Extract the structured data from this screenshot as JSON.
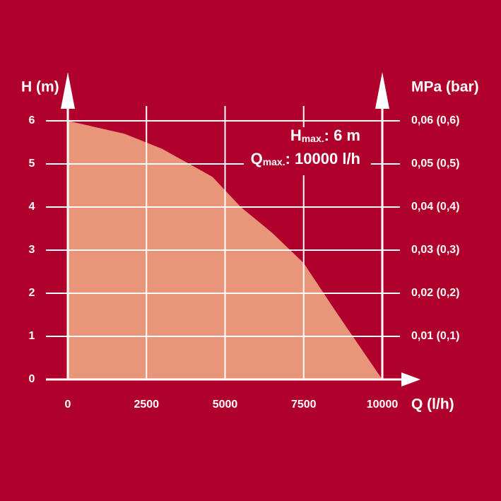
{
  "chart_data": {
    "type": "area",
    "x": [
      0,
      1800,
      3000,
      4600,
      5500,
      6500,
      7500,
      8500,
      10000
    ],
    "values": [
      6,
      5.7,
      5.35,
      4.7,
      4.0,
      3.4,
      2.7,
      1.6,
      0
    ],
    "color": "#e8957a",
    "x_label": "Q (l/h)",
    "y_label": "H (m)",
    "y2_label": "MPa (bar)",
    "xlim": [
      0,
      10000
    ],
    "xticks": [
      0,
      2500,
      5000,
      7500,
      10000
    ],
    "ylim": [
      0,
      6
    ],
    "yticks": [
      0,
      1,
      2,
      3,
      4,
      5,
      6
    ],
    "y2lim": [
      0,
      0.06
    ],
    "y2ticks": [
      {
        "value": 0.01,
        "label": "0,01 (0,1)"
      },
      {
        "value": 0.02,
        "label": "0,02 (0,2)"
      },
      {
        "value": 0.03,
        "label": "0,03 (0,3)"
      },
      {
        "value": 0.04,
        "label": "0,04 (0,4)"
      },
      {
        "value": 0.05,
        "label": "0,05 (0,5)"
      },
      {
        "value": 0.06,
        "label": "0,06 (0,6)"
      }
    ],
    "grid": true,
    "annotations": [
      {
        "symbol": "H",
        "subscript": "max.",
        "text": ": 6 m"
      },
      {
        "symbol": "Q",
        "subscript": "max.",
        "text": ": 10000 l/h"
      }
    ]
  }
}
